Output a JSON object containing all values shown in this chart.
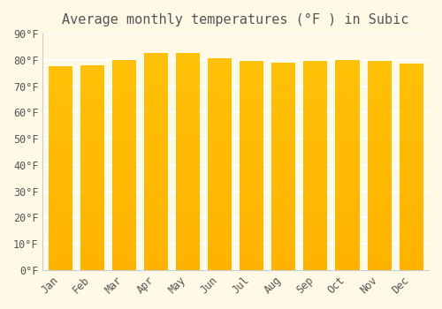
{
  "title": "Average monthly temperatures (°F ) in Subic",
  "months": [
    "Jan",
    "Feb",
    "Mar",
    "Apr",
    "May",
    "Jun",
    "Jul",
    "Aug",
    "Sep",
    "Oct",
    "Nov",
    "Dec"
  ],
  "values": [
    77.5,
    78.0,
    80.0,
    82.5,
    82.5,
    80.5,
    79.5,
    79.0,
    79.5,
    80.0,
    79.5,
    78.5
  ],
  "bar_color_top": "#FFC107",
  "bar_color_bottom": "#FFB300",
  "background_color": "#FFF9E6",
  "grid_color": "#FFFFFF",
  "text_color": "#555555",
  "ylim": [
    0,
    90
  ],
  "ytick_step": 10,
  "title_fontsize": 11,
  "tick_fontsize": 8.5,
  "font_family": "monospace"
}
